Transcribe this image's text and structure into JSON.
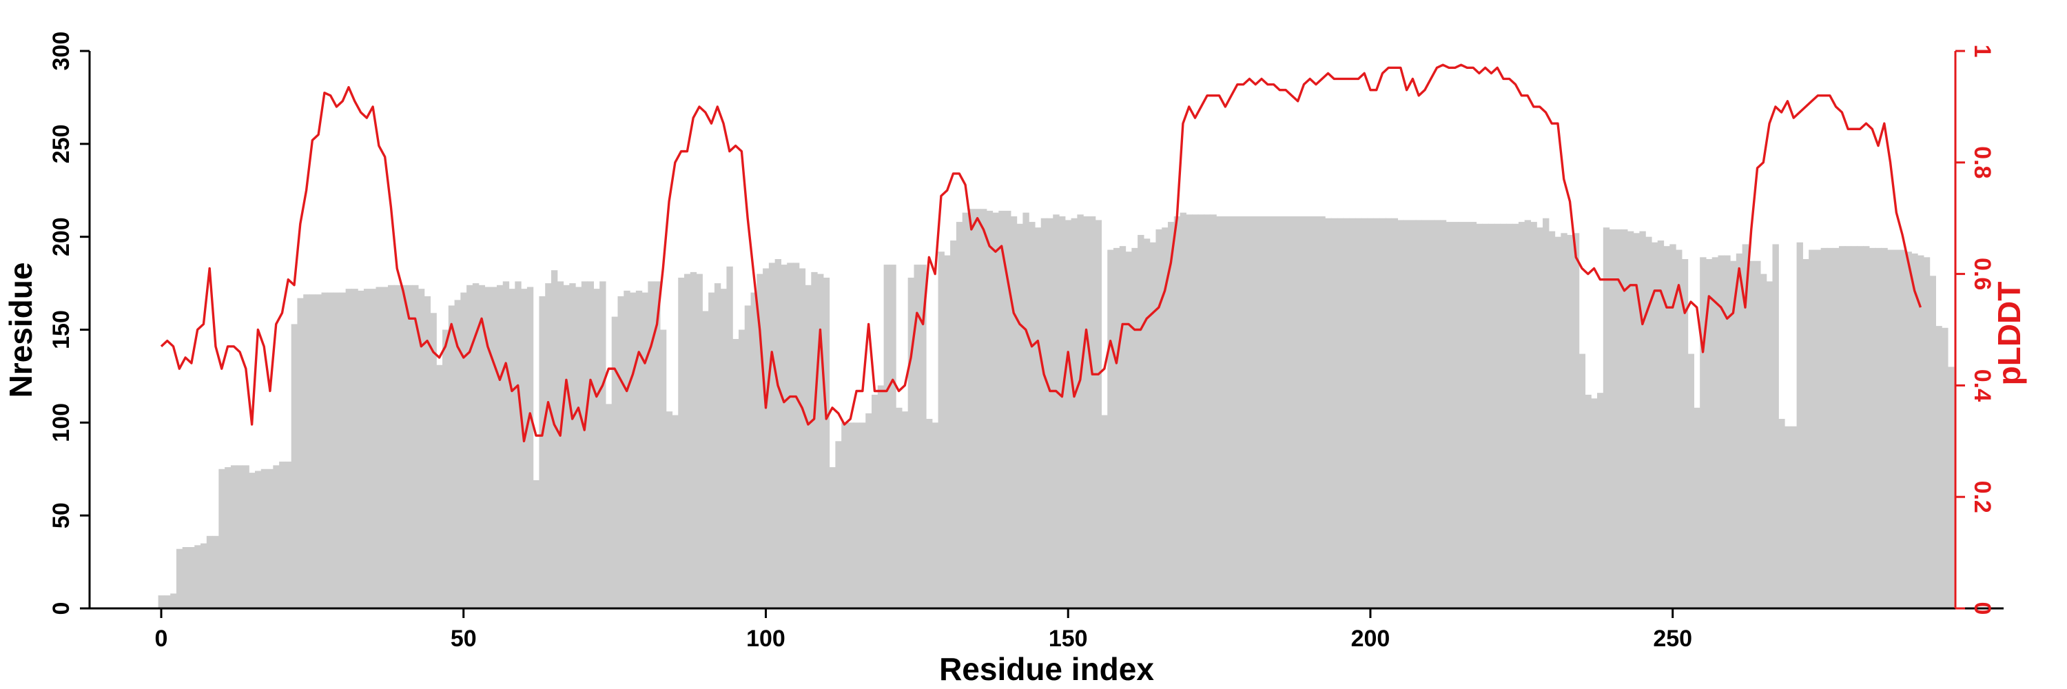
{
  "chart_data": {
    "type": "bar+line",
    "xlabel": "Residue index",
    "ylabel_left": "Nresidue",
    "ylabel_right": "pLDDT",
    "xlim": [
      -12,
      306
    ],
    "ylim_left": [
      0,
      300
    ],
    "ylim_right": [
      0,
      1
    ],
    "x_ticks": [
      0,
      50,
      100,
      150,
      200,
      250
    ],
    "y_ticks_left": [
      0,
      50,
      100,
      150,
      200,
      250,
      300
    ],
    "y_ticks_right": [
      0,
      0.2,
      0.4,
      0.6,
      0.8,
      1
    ],
    "y_tick_labels_right": [
      "0",
      "0.2",
      "0.4",
      "0.6",
      "0.8",
      "1"
    ],
    "bar_color": "#cccccc",
    "line_color": "#e31a1c",
    "left_axis_color": "#000000",
    "right_axis_color": "#e31a1c",
    "grid": false,
    "series": [
      {
        "kind": "bar",
        "axis": "left",
        "x_start": 0,
        "values": [
          7,
          7,
          8,
          32,
          33,
          33,
          34,
          35,
          39,
          39,
          75,
          76,
          77,
          77,
          77,
          73,
          74,
          75,
          75,
          77,
          79,
          79,
          153,
          167,
          169,
          169,
          169,
          170,
          170,
          170,
          170,
          172,
          172,
          171,
          172,
          172,
          173,
          173,
          174,
          174,
          174,
          174,
          174,
          172,
          168,
          159,
          131,
          150,
          163,
          166,
          170,
          174,
          175,
          174,
          173,
          173,
          174,
          176,
          172,
          176,
          172,
          173,
          69,
          168,
          175,
          182,
          176,
          174,
          175,
          173,
          176,
          176,
          172,
          176,
          110,
          157,
          168,
          171,
          170,
          171,
          170,
          176,
          176,
          150,
          106,
          104,
          178,
          180,
          181,
          180,
          160,
          170,
          175,
          172,
          184,
          145,
          150,
          163,
          170,
          180,
          183,
          186,
          188,
          185,
          186,
          186,
          183,
          174,
          181,
          180,
          178,
          76,
          90,
          100,
          100,
          100,
          100,
          105,
          115,
          120,
          185,
          185,
          108,
          106,
          178,
          185,
          185,
          102,
          100,
          192,
          190,
          198,
          208,
          213,
          215,
          215,
          215,
          214,
          213,
          214,
          214,
          211,
          207,
          213,
          208,
          205,
          210,
          210,
          212,
          211,
          209,
          210,
          212,
          211,
          211,
          209,
          104,
          193,
          194,
          195,
          192,
          194,
          201,
          199,
          197,
          204,
          205,
          208,
          211,
          213,
          212,
          212,
          212,
          212,
          212,
          211,
          211,
          211,
          211,
          211,
          211,
          211,
          211,
          211,
          211,
          211,
          211,
          211,
          211,
          211,
          211,
          211,
          211,
          210,
          210,
          210,
          210,
          210,
          210,
          210,
          210,
          210,
          210,
          210,
          210,
          209,
          209,
          209,
          209,
          209,
          209,
          209,
          209,
          208,
          208,
          208,
          208,
          208,
          207,
          207,
          207,
          207,
          207,
          207,
          207,
          208,
          209,
          208,
          205,
          210,
          203,
          200,
          202,
          201,
          202,
          137,
          115,
          113,
          116,
          205,
          204,
          204,
          204,
          203,
          202,
          203,
          200,
          197,
          198,
          195,
          196,
          193,
          188,
          137,
          108,
          189,
          188,
          189,
          190,
          190,
          187,
          191,
          196,
          187,
          187,
          180,
          176,
          196,
          102,
          98,
          98,
          197,
          188,
          193,
          193,
          194,
          194,
          194,
          195,
          195,
          195,
          195,
          195,
          194,
          194,
          194,
          193,
          193,
          193,
          192,
          191,
          190,
          189,
          179,
          152,
          151,
          130
        ]
      },
      {
        "kind": "line",
        "axis": "right",
        "x_start": 0,
        "values": [
          0.47,
          0.48,
          0.47,
          0.43,
          0.45,
          0.44,
          0.5,
          0.51,
          0.61,
          0.47,
          0.43,
          0.47,
          0.47,
          0.46,
          0.43,
          0.33,
          0.5,
          0.47,
          0.39,
          0.51,
          0.53,
          0.59,
          0.58,
          0.69,
          0.75,
          0.84,
          0.85,
          0.925,
          0.92,
          0.9,
          0.91,
          0.935,
          0.91,
          0.89,
          0.88,
          0.9,
          0.83,
          0.81,
          0.72,
          0.61,
          0.57,
          0.52,
          0.52,
          0.47,
          0.48,
          0.46,
          0.45,
          0.47,
          0.51,
          0.47,
          0.45,
          0.46,
          0.49,
          0.52,
          0.47,
          0.44,
          0.41,
          0.44,
          0.39,
          0.4,
          0.3,
          0.35,
          0.31,
          0.31,
          0.37,
          0.33,
          0.31,
          0.41,
          0.34,
          0.36,
          0.32,
          0.41,
          0.38,
          0.4,
          0.43,
          0.43,
          0.41,
          0.39,
          0.42,
          0.46,
          0.44,
          0.47,
          0.51,
          0.61,
          0.73,
          0.8,
          0.82,
          0.82,
          0.88,
          0.9,
          0.89,
          0.87,
          0.9,
          0.87,
          0.82,
          0.83,
          0.82,
          0.7,
          0.6,
          0.5,
          0.36,
          0.46,
          0.4,
          0.37,
          0.38,
          0.38,
          0.36,
          0.33,
          0.34,
          0.5,
          0.34,
          0.36,
          0.35,
          0.33,
          0.34,
          0.39,
          0.39,
          0.51,
          0.39,
          0.39,
          0.39,
          0.41,
          0.39,
          0.4,
          0.45,
          0.53,
          0.51,
          0.63,
          0.6,
          0.74,
          0.75,
          0.78,
          0.78,
          0.76,
          0.68,
          0.7,
          0.68,
          0.65,
          0.64,
          0.65,
          0.59,
          0.53,
          0.51,
          0.5,
          0.47,
          0.48,
          0.42,
          0.39,
          0.39,
          0.38,
          0.46,
          0.38,
          0.41,
          0.5,
          0.42,
          0.42,
          0.43,
          0.48,
          0.44,
          0.51,
          0.51,
          0.5,
          0.5,
          0.52,
          0.53,
          0.54,
          0.57,
          0.62,
          0.7,
          0.87,
          0.9,
          0.88,
          0.9,
          0.92,
          0.92,
          0.92,
          0.9,
          0.92,
          0.94,
          0.94,
          0.95,
          0.94,
          0.95,
          0.94,
          0.94,
          0.93,
          0.93,
          0.92,
          0.91,
          0.94,
          0.95,
          0.94,
          0.95,
          0.96,
          0.95,
          0.95,
          0.95,
          0.95,
          0.95,
          0.96,
          0.93,
          0.93,
          0.96,
          0.97,
          0.97,
          0.97,
          0.93,
          0.95,
          0.92,
          0.93,
          0.95,
          0.97,
          0.975,
          0.97,
          0.97,
          0.975,
          0.97,
          0.97,
          0.96,
          0.97,
          0.96,
          0.97,
          0.95,
          0.95,
          0.94,
          0.92,
          0.92,
          0.9,
          0.9,
          0.89,
          0.87,
          0.87,
          0.77,
          0.73,
          0.63,
          0.61,
          0.6,
          0.61,
          0.59,
          0.59,
          0.59,
          0.59,
          0.57,
          0.58,
          0.58,
          0.51,
          0.54,
          0.57,
          0.57,
          0.54,
          0.54,
          0.58,
          0.53,
          0.55,
          0.54,
          0.46,
          0.56,
          0.55,
          0.54,
          0.52,
          0.53,
          0.61,
          0.54,
          0.68,
          0.79,
          0.8,
          0.87,
          0.9,
          0.89,
          0.91,
          0.88,
          0.89,
          0.9,
          0.91,
          0.92,
          0.92,
          0.92,
          0.9,
          0.89,
          0.86,
          0.86,
          0.86,
          0.87,
          0.86,
          0.83,
          0.87,
          0.8,
          0.71,
          0.67,
          0.62,
          0.57,
          0.54
        ]
      }
    ]
  }
}
